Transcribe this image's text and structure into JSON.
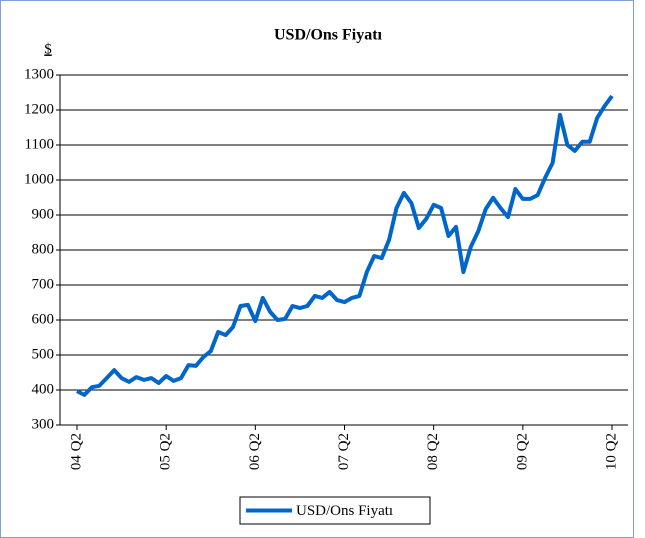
{
  "chart_data": {
    "type": "line",
    "title": "USD/Ons Fiyatı",
    "y_label": "$",
    "categories": [
      "04 Q2",
      null,
      null,
      null,
      null,
      null,
      null,
      null,
      null,
      null,
      null,
      null,
      "05 Q2",
      null,
      null,
      null,
      null,
      null,
      null,
      null,
      null,
      null,
      null,
      null,
      "06 Q2",
      null,
      null,
      null,
      null,
      null,
      null,
      null,
      null,
      null,
      null,
      null,
      "07 Q2",
      null,
      null,
      null,
      null,
      null,
      null,
      null,
      null,
      null,
      null,
      null,
      "08 Q2",
      null,
      null,
      null,
      null,
      null,
      null,
      null,
      null,
      null,
      null,
      null,
      "09 Q2",
      null,
      null,
      null,
      null,
      null,
      null,
      null,
      null,
      null,
      null,
      null,
      "10 Q2"
    ],
    "series": [
      {
        "name": "USD/Ons Fiyatı",
        "color": "#0066cc",
        "values": [
          397,
          386,
          408,
          412,
          434,
          457,
          434,
          423,
          437,
          429,
          434,
          420,
          440,
          426,
          434,
          471,
          469,
          494,
          511,
          566,
          557,
          580,
          640,
          643,
          597,
          663,
          623,
          600,
          603,
          640,
          634,
          640,
          669,
          663,
          680,
          657,
          651,
          663,
          669,
          737,
          783,
          777,
          829,
          920,
          963,
          934,
          863,
          889,
          929,
          920,
          840,
          866,
          737,
          809,
          854,
          917,
          949,
          920,
          894,
          974,
          946,
          946,
          957,
          1006,
          1049,
          1186,
          1100,
          1083,
          1109,
          1109,
          1177,
          1211,
          1240
        ]
      }
    ],
    "ylim": [
      300,
      1300
    ],
    "yticks": [
      300,
      400,
      500,
      600,
      700,
      800,
      900,
      1000,
      1100,
      1200,
      1300
    ],
    "grid": true,
    "legend": "bottom"
  }
}
